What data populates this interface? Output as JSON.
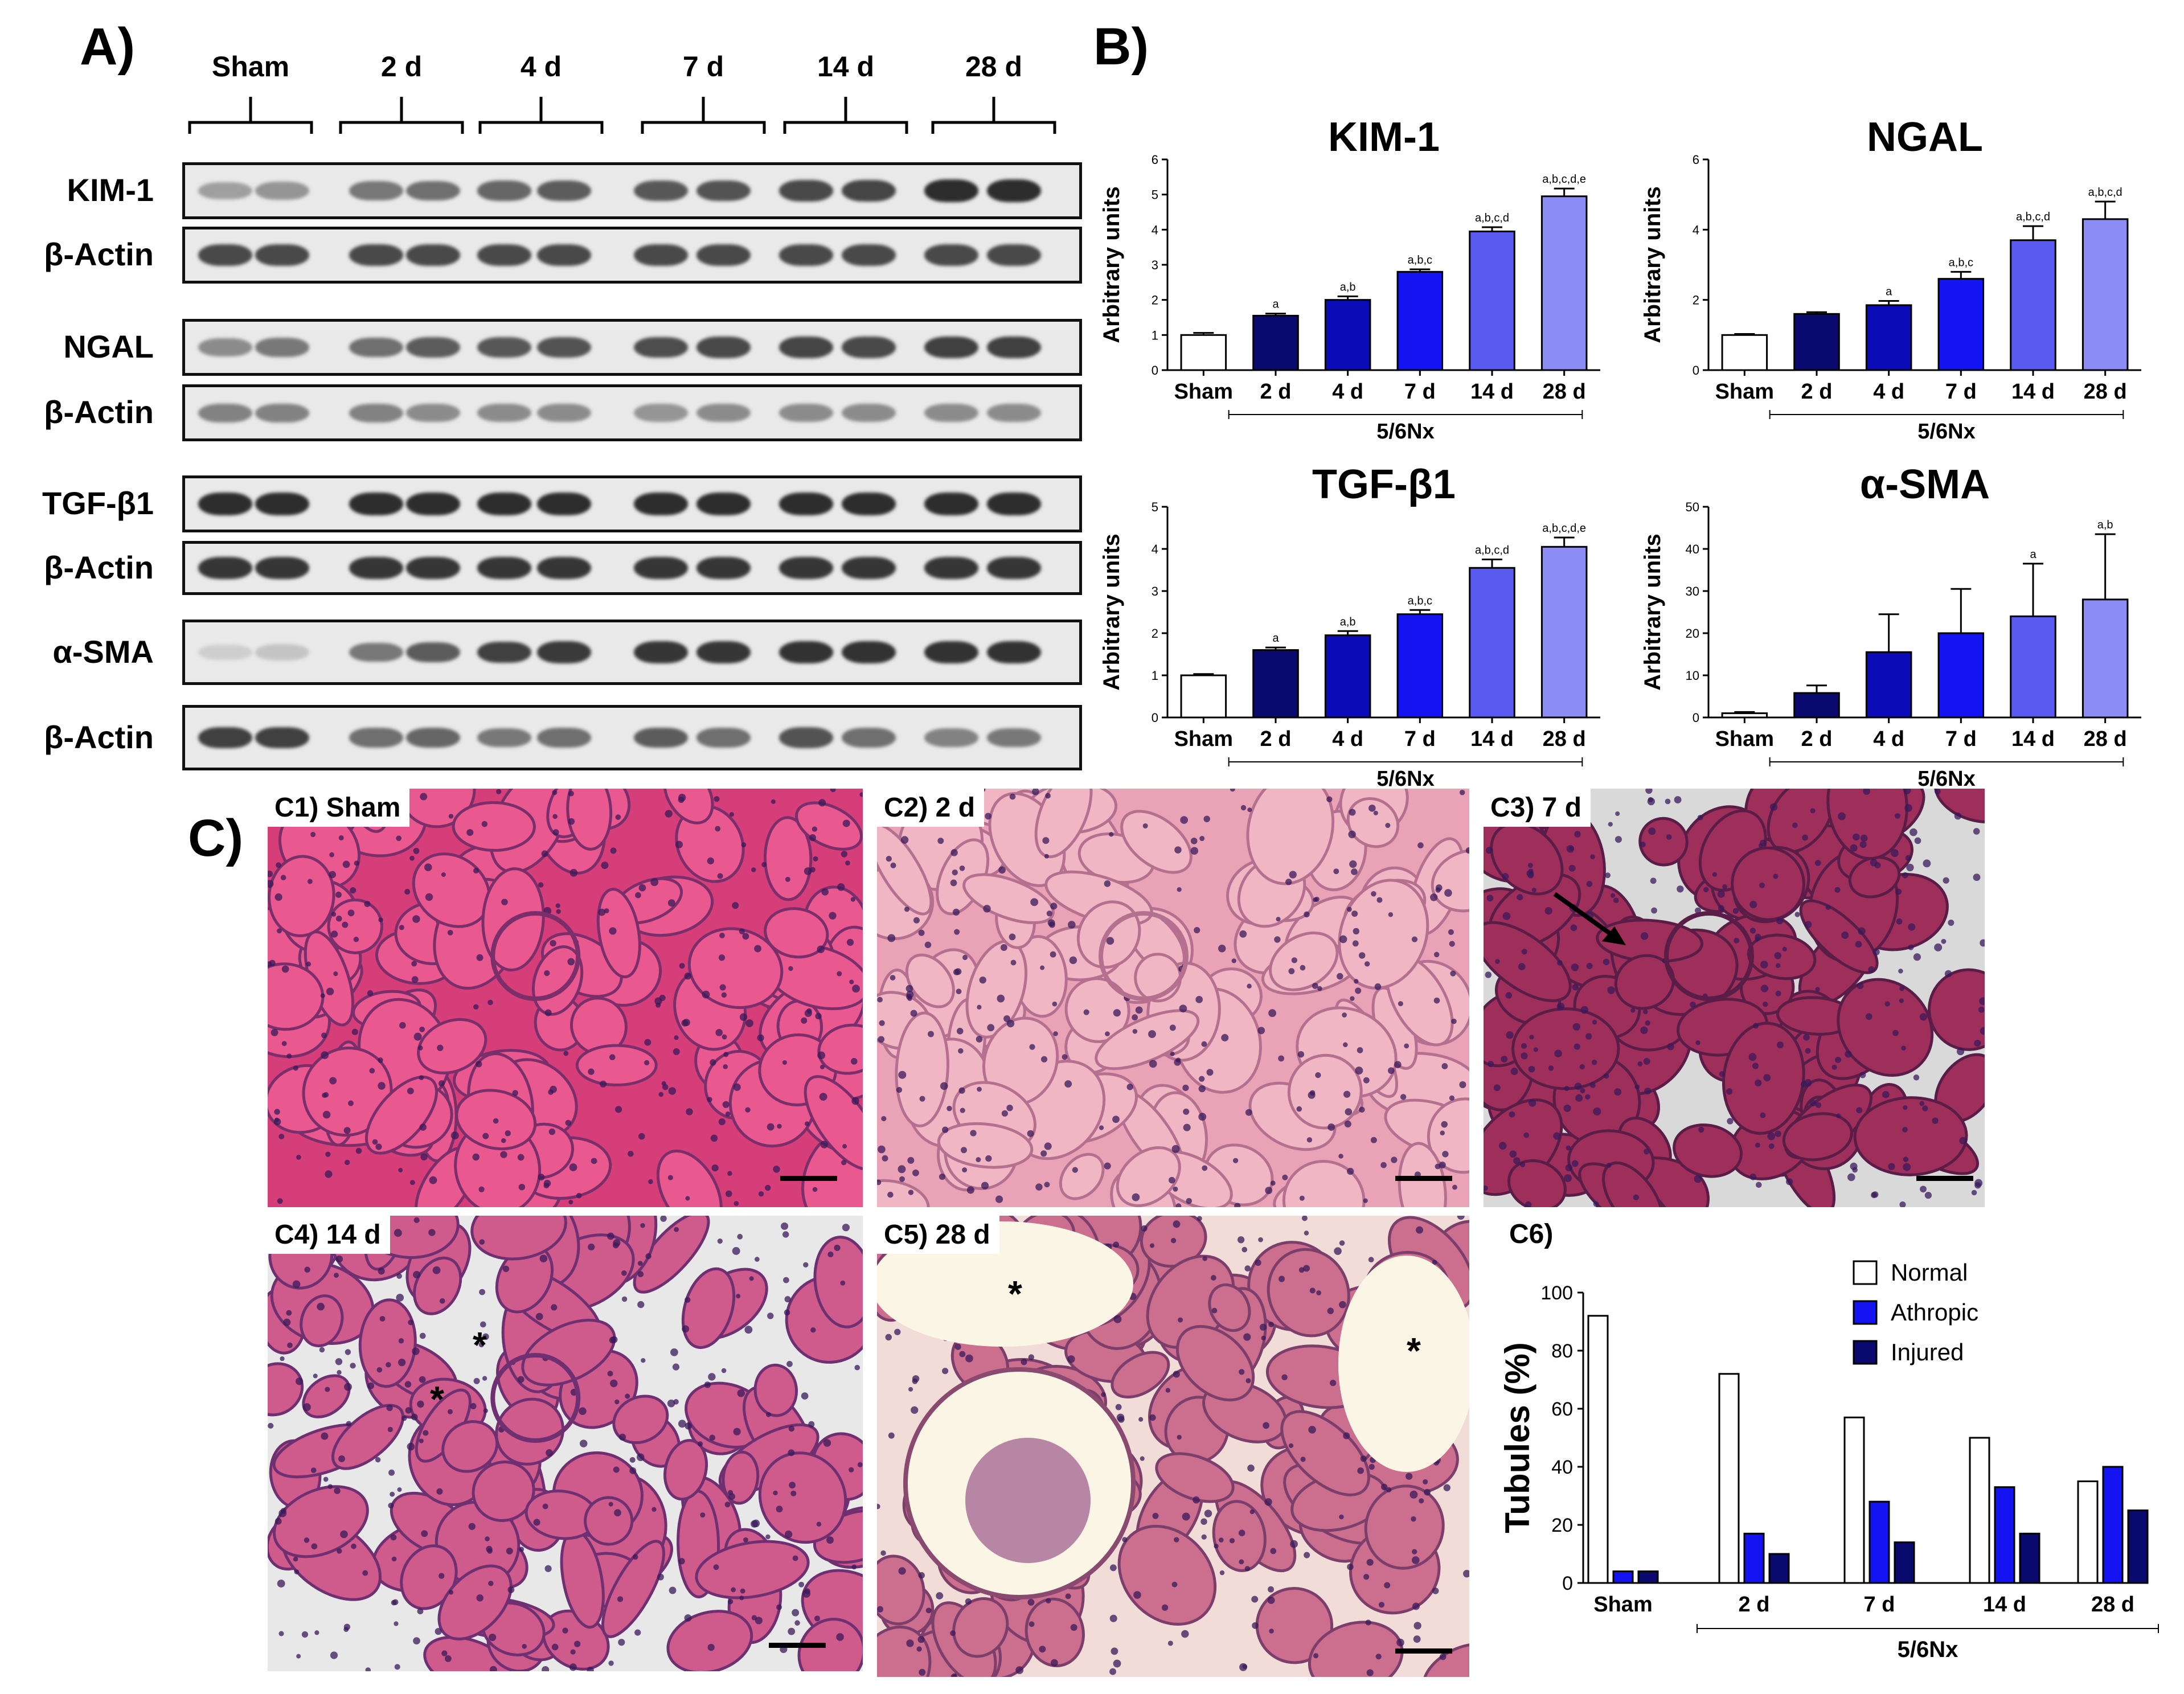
{
  "panel_a": {
    "letter": "A)",
    "groups": [
      "Sham",
      "2 d",
      "4 d",
      "7 d",
      "14 d",
      "28 d"
    ],
    "rows": [
      {
        "label": "KIM-1",
        "intensity": [
          0.35,
          0.4,
          0.55,
          0.6,
          0.65,
          0.7,
          0.72,
          0.75,
          0.8,
          0.82,
          0.95,
          0.95
        ]
      },
      {
        "label": "β-Actin",
        "intensity": [
          0.8,
          0.8,
          0.8,
          0.8,
          0.8,
          0.8,
          0.8,
          0.8,
          0.8,
          0.8,
          0.8,
          0.8
        ]
      },
      {
        "label": "NGAL",
        "intensity": [
          0.45,
          0.55,
          0.6,
          0.7,
          0.72,
          0.75,
          0.78,
          0.8,
          0.82,
          0.8,
          0.85,
          0.85
        ]
      },
      {
        "label": "β-Actin",
        "intensity": [
          0.5,
          0.5,
          0.5,
          0.45,
          0.45,
          0.45,
          0.4,
          0.45,
          0.45,
          0.45,
          0.45,
          0.45
        ]
      },
      {
        "label": "TGF-β1",
        "intensity": [
          0.95,
          0.95,
          0.95,
          0.95,
          0.95,
          0.95,
          0.95,
          0.95,
          0.95,
          0.95,
          0.95,
          0.95
        ]
      },
      {
        "label": "β-Actin",
        "intensity": [
          0.9,
          0.9,
          0.9,
          0.9,
          0.9,
          0.9,
          0.9,
          0.9,
          0.9,
          0.9,
          0.9,
          0.9
        ]
      },
      {
        "label": "α-SMA",
        "intensity": [
          0.1,
          0.15,
          0.55,
          0.7,
          0.85,
          0.88,
          0.9,
          0.9,
          0.92,
          0.92,
          0.92,
          0.92
        ]
      },
      {
        "label": "β-Actin",
        "intensity": [
          0.85,
          0.85,
          0.6,
          0.65,
          0.55,
          0.6,
          0.7,
          0.6,
          0.75,
          0.6,
          0.5,
          0.55
        ]
      }
    ]
  },
  "panel_b": {
    "letter": "B)"
  },
  "chart_data": [
    {
      "type": "bar",
      "title": "KIM-1",
      "ylabel": "Arbitrary units",
      "xlabel": "5/6Nx",
      "categories": [
        "Sham",
        "2 d",
        "4 d",
        "7 d",
        "14 d",
        "28 d"
      ],
      "values": [
        1.0,
        1.55,
        2.0,
        2.8,
        3.95,
        4.95
      ],
      "errors": [
        0.06,
        0.06,
        0.1,
        0.07,
        0.12,
        0.22
      ],
      "annotations": [
        "",
        "a",
        "a,b",
        "a,b,c",
        "a,b,c,d",
        "a,b,c,d,e"
      ],
      "ylim": [
        0,
        6
      ],
      "yticks": [
        "0",
        "1",
        "2",
        "3",
        "4",
        "5",
        "6"
      ],
      "colors": [
        "#ffffff",
        "#0a0a6e",
        "#0b0bb8",
        "#1414f2",
        "#5a5af0",
        "#8c8cf4"
      ]
    },
    {
      "type": "bar",
      "title": "NGAL",
      "ylabel": "Arbitrary units",
      "xlabel": "5/6Nx",
      "categories": [
        "Sham",
        "2 d",
        "4 d",
        "7 d",
        "14 d",
        "28 d"
      ],
      "values": [
        1.0,
        1.6,
        1.85,
        2.6,
        3.7,
        4.3
      ],
      "errors": [
        0.03,
        0.05,
        0.12,
        0.2,
        0.4,
        0.5
      ],
      "annotations": [
        "",
        "",
        "a",
        "a,b,c",
        "a,b,c,d",
        "a,b,c,d"
      ],
      "ylim": [
        0,
        6
      ],
      "yticks": [
        "0",
        "2",
        "4",
        "6"
      ],
      "colors": [
        "#ffffff",
        "#0a0a6e",
        "#0b0bb8",
        "#1414f2",
        "#5a5af0",
        "#8c8cf4"
      ]
    },
    {
      "type": "bar",
      "title": "TGF-β1",
      "ylabel": "Arbitrary units",
      "xlabel": "5/6Nx",
      "categories": [
        "Sham",
        "2 d",
        "4 d",
        "7 d",
        "14 d",
        "28 d"
      ],
      "values": [
        1.0,
        1.6,
        1.95,
        2.45,
        3.55,
        4.05
      ],
      "errors": [
        0.03,
        0.06,
        0.1,
        0.1,
        0.2,
        0.22
      ],
      "annotations": [
        "",
        "a",
        "a,b",
        "a,b,c",
        "a,b,c,d",
        "a,b,c,d,e"
      ],
      "ylim": [
        0,
        5
      ],
      "yticks": [
        "0",
        "1",
        "2",
        "3",
        "4",
        "5"
      ],
      "colors": [
        "#ffffff",
        "#0a0a6e",
        "#0b0bb8",
        "#1414f2",
        "#5a5af0",
        "#8c8cf4"
      ]
    },
    {
      "type": "bar",
      "title": "α-SMA",
      "ylabel": "Arbitrary units",
      "xlabel": "5/6Nx",
      "categories": [
        "Sham",
        "2 d",
        "4 d",
        "7 d",
        "14 d",
        "28 d"
      ],
      "values": [
        1.0,
        5.8,
        15.5,
        20.0,
        24.0,
        28.0
      ],
      "errors": [
        0.3,
        1.8,
        9.0,
        10.5,
        12.5,
        15.5
      ],
      "annotations": [
        "",
        "",
        "",
        "",
        "a",
        "a,b"
      ],
      "ylim": [
        0,
        50
      ],
      "yticks": [
        "0",
        "10",
        "20",
        "30",
        "40",
        "50"
      ],
      "colors": [
        "#ffffff",
        "#0a0a6e",
        "#0b0bb8",
        "#1414f2",
        "#5a5af0",
        "#8c8cf4"
      ]
    },
    {
      "type": "bar",
      "title": "",
      "ylabel": "Tubules (%)",
      "xlabel": "5/6Nx",
      "categories": [
        "Sham",
        "2 d",
        "7 d",
        "14 d",
        "28 d"
      ],
      "series": [
        {
          "name": "Normal",
          "values": [
            92,
            72,
            57,
            50,
            35
          ],
          "color": "#ffffff"
        },
        {
          "name": "Athropic",
          "values": [
            4,
            17,
            28,
            33,
            40
          ],
          "color": "#1414f2"
        },
        {
          "name": "Injured",
          "values": [
            4,
            10,
            14,
            17,
            25
          ],
          "color": "#0a0a6e"
        }
      ],
      "ylim": [
        0,
        100
      ],
      "yticks": [
        "0",
        "20",
        "40",
        "60",
        "80",
        "100"
      ],
      "legend": "top-right"
    }
  ],
  "panel_c": {
    "letter": "C)",
    "images": [
      {
        "label": "C1) Sham",
        "style": "dense"
      },
      {
        "label": "C2) 2 d",
        "style": "pale"
      },
      {
        "label": "C3) 7 d",
        "style": "gaps"
      },
      {
        "label": "C4) 14 d",
        "style": "casts"
      },
      {
        "label": "C5) 28 d",
        "style": "dilated"
      }
    ],
    "chart_label": "C6)",
    "asterisk": "*"
  }
}
